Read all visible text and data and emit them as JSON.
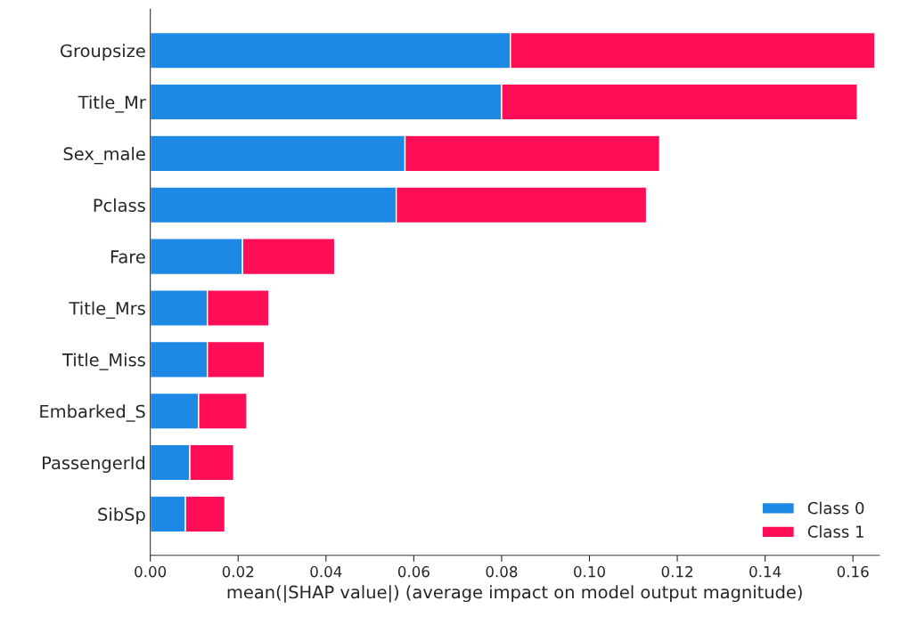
{
  "chart_data": {
    "type": "bar",
    "orientation": "horizontal",
    "stacked": true,
    "categories": [
      "Groupsize",
      "Title_Mr",
      "Sex_male",
      "Pclass",
      "Fare",
      "Title_Mrs",
      "Title_Miss",
      "Embarked_S",
      "PassengerId",
      "SibSp"
    ],
    "series": [
      {
        "name": "Class 0",
        "color": "#1e88e5",
        "values": [
          0.082,
          0.08,
          0.058,
          0.056,
          0.021,
          0.013,
          0.013,
          0.011,
          0.009,
          0.008
        ]
      },
      {
        "name": "Class 1",
        "color": "#ff0d57",
        "values": [
          0.083,
          0.081,
          0.058,
          0.057,
          0.021,
          0.014,
          0.013,
          0.011,
          0.01,
          0.009
        ]
      }
    ],
    "xlabel": "mean(|SHAP value|) (average impact on model output magnitude)",
    "xlim": [
      0,
      0.166
    ],
    "xticks": [
      {
        "value": 0,
        "label": "0.00"
      },
      {
        "value": 0.02,
        "label": "0.02"
      },
      {
        "value": 0.04,
        "label": "0.04"
      },
      {
        "value": 0.06,
        "label": "0.06"
      },
      {
        "value": 0.08,
        "label": "0.08"
      },
      {
        "value": 0.1,
        "label": "0.10"
      },
      {
        "value": 0.12,
        "label": "0.12"
      },
      {
        "value": 0.14,
        "label": "0.14"
      },
      {
        "value": 0.16,
        "label": "0.16"
      }
    ],
    "legend": "bottom right",
    "grid": false
  }
}
